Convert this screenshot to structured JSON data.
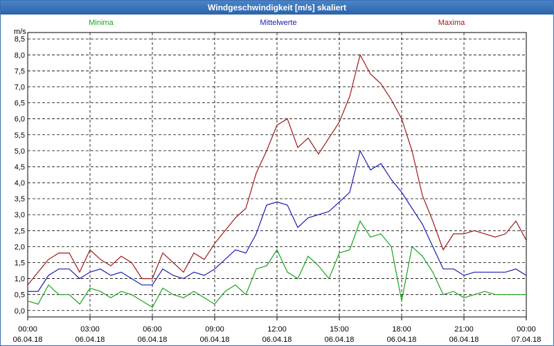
{
  "window": {
    "title": "Windgeschwindigkeit [m/s] skaliert"
  },
  "chart_data": {
    "type": "line",
    "title": "Windgeschwindigkeit [m/s] skaliert",
    "ylabel": "m/s",
    "ylim": [
      -0.2,
      8.7
    ],
    "yticks": [
      0,
      0.5,
      1,
      1.5,
      2,
      2.5,
      3,
      3.5,
      4,
      4.5,
      5,
      5.5,
      6,
      6.5,
      7,
      7.5,
      8,
      8.5
    ],
    "ytick_labels": [
      "0,0",
      "0,5",
      "1,0",
      "1,5",
      "2,0",
      "2,5",
      "3,0",
      "3,5",
      "4,0",
      "4,5",
      "5,0",
      "5,5",
      "6,0",
      "6,5",
      "7,0",
      "7,5",
      "8,0",
      "8,5"
    ],
    "xlim": [
      0,
      24
    ],
    "xticks": [
      {
        "time": "00:00",
        "date": "06.04.18"
      },
      {
        "time": "03:00",
        "date": "06.04.18"
      },
      {
        "time": "06:00",
        "date": "06.04.18"
      },
      {
        "time": "09:00",
        "date": "06.04.18"
      },
      {
        "time": "12:00",
        "date": "06.04.18"
      },
      {
        "time": "15:00",
        "date": "06.04.18"
      },
      {
        "time": "18:00",
        "date": "06.04.18"
      },
      {
        "time": "21:00",
        "date": "06.04.18"
      },
      {
        "time": "00:00",
        "date": "07.04.18"
      }
    ],
    "grid": true,
    "series": [
      {
        "name": "Minima",
        "color": "#1aa31a",
        "x": [
          0,
          0.5,
          1,
          1.5,
          2,
          2.5,
          3,
          3.5,
          4,
          4.5,
          5,
          5.5,
          6,
          6.5,
          7,
          7.5,
          8,
          8.5,
          9,
          9.5,
          10,
          10.5,
          11,
          11.5,
          12,
          12.5,
          13,
          13.5,
          14,
          14.5,
          15,
          15.5,
          16,
          16.5,
          17,
          17.5,
          18,
          18.5,
          19,
          19.5,
          20,
          20.5,
          21,
          21.5,
          22,
          22.5,
          23,
          23.5,
          24
        ],
        "values": [
          0.3,
          0.2,
          0.8,
          0.5,
          0.5,
          0.2,
          0.7,
          0.6,
          0.4,
          0.6,
          0.5,
          0.3,
          0.1,
          0.7,
          0.5,
          0.4,
          0.6,
          0.4,
          0.2,
          0.6,
          0.8,
          0.5,
          1.3,
          1.4,
          1.9,
          1.2,
          1.0,
          1.7,
          1.4,
          1.0,
          1.8,
          1.9,
          2.8,
          2.3,
          2.4,
          2.0,
          0.3,
          2.0,
          1.7,
          1.2,
          0.5,
          0.6,
          0.4,
          0.5,
          0.6,
          0.5,
          0.5,
          0.5,
          0.5
        ]
      },
      {
        "name": "Mittelwerte",
        "color": "#1c1cb0",
        "x": [
          0,
          0.5,
          1,
          1.5,
          2,
          2.5,
          3,
          3.5,
          4,
          4.5,
          5,
          5.5,
          6,
          6.5,
          7,
          7.5,
          8,
          8.5,
          9,
          9.5,
          10,
          10.5,
          11,
          11.5,
          12,
          12.5,
          13,
          13.5,
          14,
          14.5,
          15,
          15.5,
          16,
          16.5,
          17,
          17.5,
          18,
          18.5,
          19,
          19.5,
          20,
          20.5,
          21,
          21.5,
          22,
          22.5,
          23,
          23.5,
          24
        ],
        "values": [
          0.6,
          0.6,
          1.1,
          1.3,
          1.3,
          1.0,
          1.2,
          1.3,
          1.1,
          1.2,
          1.0,
          0.8,
          0.8,
          1.3,
          1.1,
          1.0,
          1.2,
          1.1,
          1.3,
          1.6,
          1.9,
          1.8,
          2.4,
          3.3,
          3.4,
          3.3,
          2.6,
          2.9,
          3.0,
          3.1,
          3.4,
          3.7,
          5.0,
          4.4,
          4.6,
          4.1,
          3.7,
          3.2,
          2.7,
          2.0,
          1.3,
          1.3,
          1.1,
          1.2,
          1.2,
          1.2,
          1.2,
          1.3,
          1.1
        ]
      },
      {
        "name": "Maxima",
        "color": "#a01818",
        "x": [
          0,
          0.5,
          1,
          1.5,
          2,
          2.5,
          3,
          3.5,
          4,
          4.5,
          5,
          5.5,
          6,
          6.5,
          7,
          7.5,
          8,
          8.5,
          9,
          9.5,
          10,
          10.5,
          11,
          11.5,
          12,
          12.5,
          13,
          13.5,
          14,
          14.5,
          15,
          15.5,
          16,
          16.5,
          17,
          17.5,
          18,
          18.5,
          19,
          19.5,
          20,
          20.5,
          21,
          21.5,
          22,
          22.5,
          23,
          23.5,
          24
        ],
        "values": [
          0.8,
          1.2,
          1.6,
          1.8,
          1.8,
          1.2,
          1.9,
          1.6,
          1.4,
          1.7,
          1.5,
          1.0,
          1.0,
          1.8,
          1.5,
          1.2,
          1.8,
          1.6,
          2.1,
          2.5,
          2.9,
          3.2,
          4.3,
          5.0,
          5.8,
          6.0,
          5.1,
          5.4,
          4.9,
          5.4,
          5.9,
          6.7,
          8.0,
          7.4,
          7.1,
          6.6,
          6.0,
          5.0,
          3.6,
          2.8,
          1.9,
          2.4,
          2.4,
          2.5,
          2.4,
          2.3,
          2.4,
          2.8,
          2.2
        ]
      }
    ]
  }
}
